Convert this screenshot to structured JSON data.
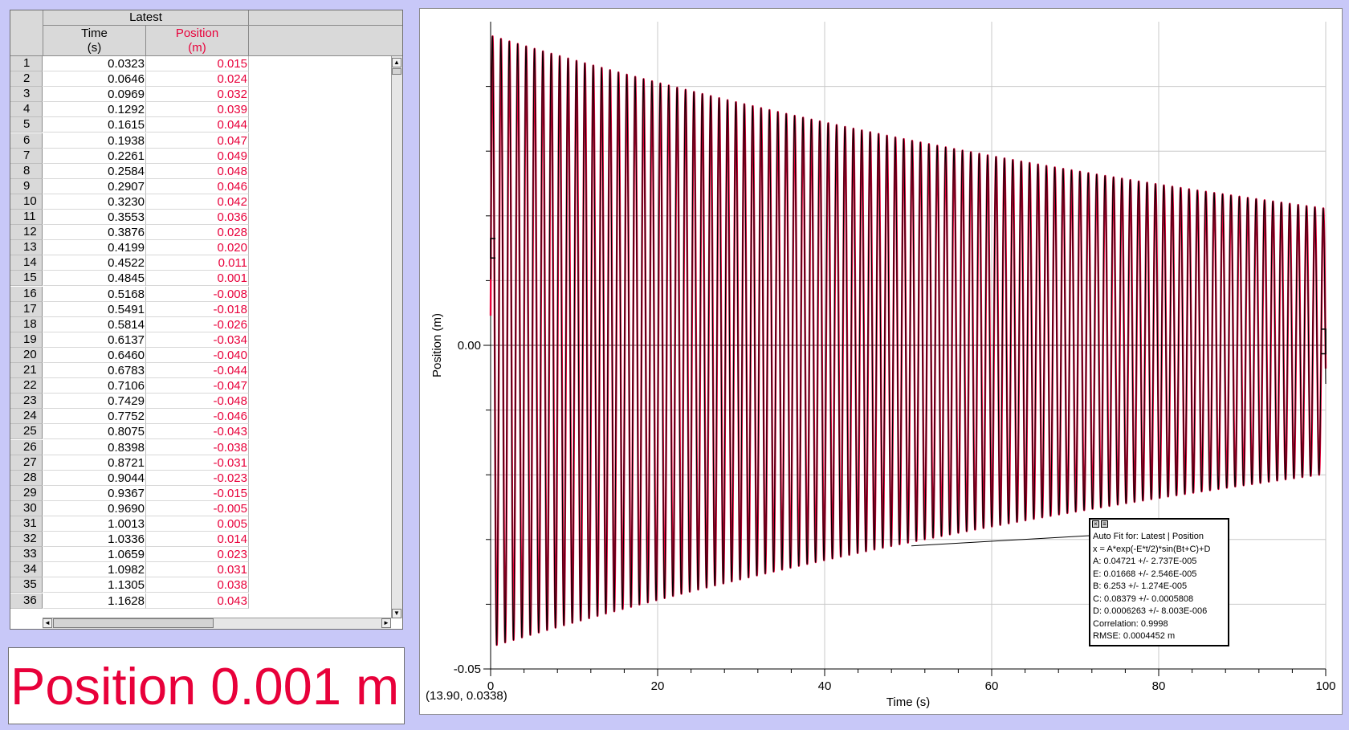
{
  "table": {
    "group_header": "Latest",
    "columns": [
      {
        "name": "Time",
        "unit": "(s)"
      },
      {
        "name": "Position",
        "unit": "(m)"
      }
    ],
    "rows": [
      {
        "n": "1",
        "time": "0.0323",
        "position": "0.015"
      },
      {
        "n": "2",
        "time": "0.0646",
        "position": "0.024"
      },
      {
        "n": "3",
        "time": "0.0969",
        "position": "0.032"
      },
      {
        "n": "4",
        "time": "0.1292",
        "position": "0.039"
      },
      {
        "n": "5",
        "time": "0.1615",
        "position": "0.044"
      },
      {
        "n": "6",
        "time": "0.1938",
        "position": "0.047"
      },
      {
        "n": "7",
        "time": "0.2261",
        "position": "0.049"
      },
      {
        "n": "8",
        "time": "0.2584",
        "position": "0.048"
      },
      {
        "n": "9",
        "time": "0.2907",
        "position": "0.046"
      },
      {
        "n": "10",
        "time": "0.3230",
        "position": "0.042"
      },
      {
        "n": "11",
        "time": "0.3553",
        "position": "0.036"
      },
      {
        "n": "12",
        "time": "0.3876",
        "position": "0.028"
      },
      {
        "n": "13",
        "time": "0.4199",
        "position": "0.020"
      },
      {
        "n": "14",
        "time": "0.4522",
        "position": "0.011"
      },
      {
        "n": "15",
        "time": "0.4845",
        "position": "0.001"
      },
      {
        "n": "16",
        "time": "0.5168",
        "position": "-0.008"
      },
      {
        "n": "17",
        "time": "0.5491",
        "position": "-0.018"
      },
      {
        "n": "18",
        "time": "0.5814",
        "position": "-0.026"
      },
      {
        "n": "19",
        "time": "0.6137",
        "position": "-0.034"
      },
      {
        "n": "20",
        "time": "0.6460",
        "position": "-0.040"
      },
      {
        "n": "21",
        "time": "0.6783",
        "position": "-0.044"
      },
      {
        "n": "22",
        "time": "0.7106",
        "position": "-0.047"
      },
      {
        "n": "23",
        "time": "0.7429",
        "position": "-0.048"
      },
      {
        "n": "24",
        "time": "0.7752",
        "position": "-0.046"
      },
      {
        "n": "25",
        "time": "0.8075",
        "position": "-0.043"
      },
      {
        "n": "26",
        "time": "0.8398",
        "position": "-0.038"
      },
      {
        "n": "27",
        "time": "0.8721",
        "position": "-0.031"
      },
      {
        "n": "28",
        "time": "0.9044",
        "position": "-0.023"
      },
      {
        "n": "29",
        "time": "0.9367",
        "position": "-0.015"
      },
      {
        "n": "30",
        "time": "0.9690",
        "position": "-0.005"
      },
      {
        "n": "31",
        "time": "1.0013",
        "position": "0.005"
      },
      {
        "n": "32",
        "time": "1.0336",
        "position": "0.014"
      },
      {
        "n": "33",
        "time": "1.0659",
        "position": "0.023"
      },
      {
        "n": "34",
        "time": "1.0982",
        "position": "0.031"
      },
      {
        "n": "35",
        "time": "1.1305",
        "position": "0.038"
      },
      {
        "n": "36",
        "time": "1.1628",
        "position": "0.043"
      }
    ]
  },
  "meter": {
    "text": "Position 0.001 m"
  },
  "coordinate_readout": "(13.90, 0.0338)",
  "colors": {
    "data": "#e8003a",
    "fit": "#000000",
    "grid": "#c8c8c8",
    "background": "#c8c8f8"
  },
  "chart_data": {
    "type": "line",
    "xlabel": "Time (s)",
    "ylabel": "Position (m)",
    "xlim": [
      0,
      100
    ],
    "ylim": [
      -0.05,
      0.05
    ],
    "x_ticks": [
      "0",
      "20",
      "40",
      "60",
      "80",
      "100"
    ],
    "y_tick_labels": [
      {
        "value": 0,
        "label": "0.00"
      },
      {
        "value": -0.05,
        "label": "-0.05"
      }
    ],
    "grid": true,
    "series": [
      {
        "name": "Position",
        "model": {
          "A": 0.04721,
          "E": 0.01668,
          "B": 6.253,
          "C": 0.08379,
          "D": 0.0006263
        }
      },
      {
        "name": "Auto Fit",
        "model": {
          "A": 0.04721,
          "E": 0.01668,
          "B": 6.253,
          "C": 0.08379,
          "D": 0.0006263
        }
      }
    ],
    "fit": {
      "title": "Auto Fit for: Latest | Position",
      "equation": "x = A*exp(-E*t/2)*sin(Bt+C)+D",
      "params": [
        "A: 0.04721 +/- 2.737E-005",
        "E: 0.01668 +/- 2.546E-005",
        "B: 6.253 +/- 1.274E-005",
        "C: 0.08379 +/- 0.0005808",
        "D: 0.0006263 +/- 8.003E-006"
      ],
      "correlation": "Correlation: 0.9998",
      "rmse": "RMSE: 0.0004452 m",
      "pointer_time": 50
    }
  }
}
